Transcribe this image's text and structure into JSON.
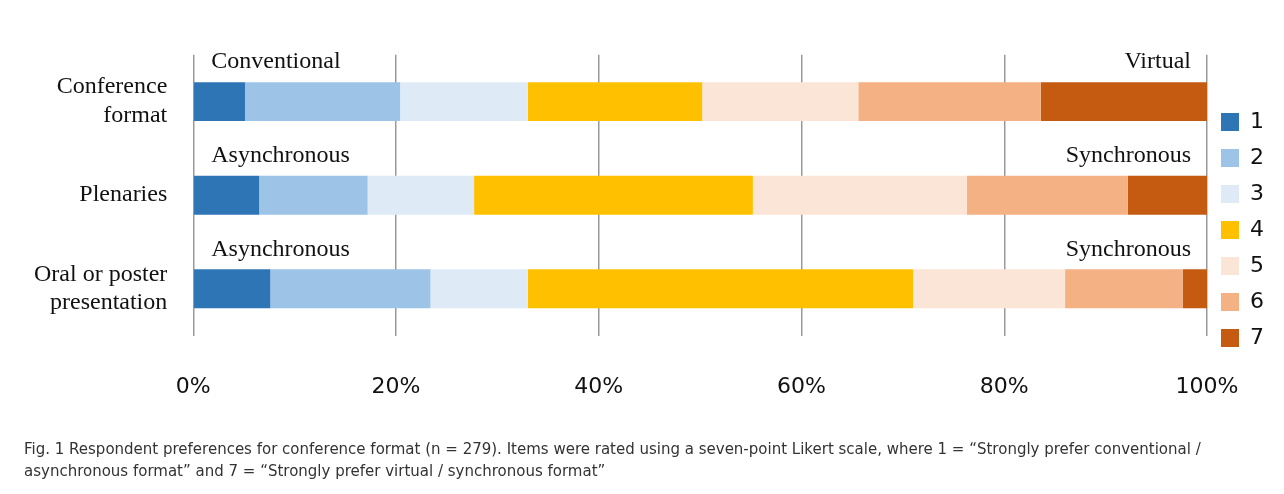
{
  "chart_data": {
    "type": "bar",
    "orientation": "horizontal",
    "stacked": true,
    "categories": [
      "Conference format",
      "Plenaries",
      "Oral or poster presentation"
    ],
    "series": [
      {
        "name": "1",
        "color": "#2e75b6",
        "values": [
          5.1,
          6.5,
          7.6
        ]
      },
      {
        "name": "2",
        "color": "#9dc3e6",
        "values": [
          15.3,
          10.7,
          15.8
        ]
      },
      {
        "name": "3",
        "color": "#deebf7",
        "values": [
          12.6,
          10.5,
          9.6
        ]
      },
      {
        "name": "4",
        "color": "#ffc000",
        "values": [
          17.2,
          27.5,
          38.0
        ]
      },
      {
        "name": "5",
        "color": "#fbe5d6",
        "values": [
          15.4,
          21.1,
          15.0
        ]
      },
      {
        "name": "6",
        "color": "#f4b183",
        "values": [
          18.0,
          15.9,
          11.6
        ]
      },
      {
        "name": "7",
        "color": "#c55a11",
        "values": [
          16.4,
          7.8,
          2.4
        ]
      }
    ],
    "xlim": [
      0,
      100
    ],
    "xticks": [
      {
        "value": 0,
        "label": "0%"
      },
      {
        "value": 20,
        "label": "20%"
      },
      {
        "value": 40,
        "label": "40%"
      },
      {
        "value": 60,
        "label": "60%"
      },
      {
        "value": 80,
        "label": "80%"
      },
      {
        "value": 100,
        "label": "100%"
      }
    ],
    "grid": "x",
    "legend": "right",
    "annotations": [
      "Conventional",
      "Virtual",
      "Asynchronous",
      "Synchronous",
      "Asynchronous",
      "Synchronous",
      "Fig. 1 Respondent preferences for conference format (n = 279). Items were rated using a seven-point Likert scale, where 1 = “Strongly prefer conventional / asynchronous format” and 7 = “Strongly prefer virtual / synchronous format”"
    ]
  }
}
